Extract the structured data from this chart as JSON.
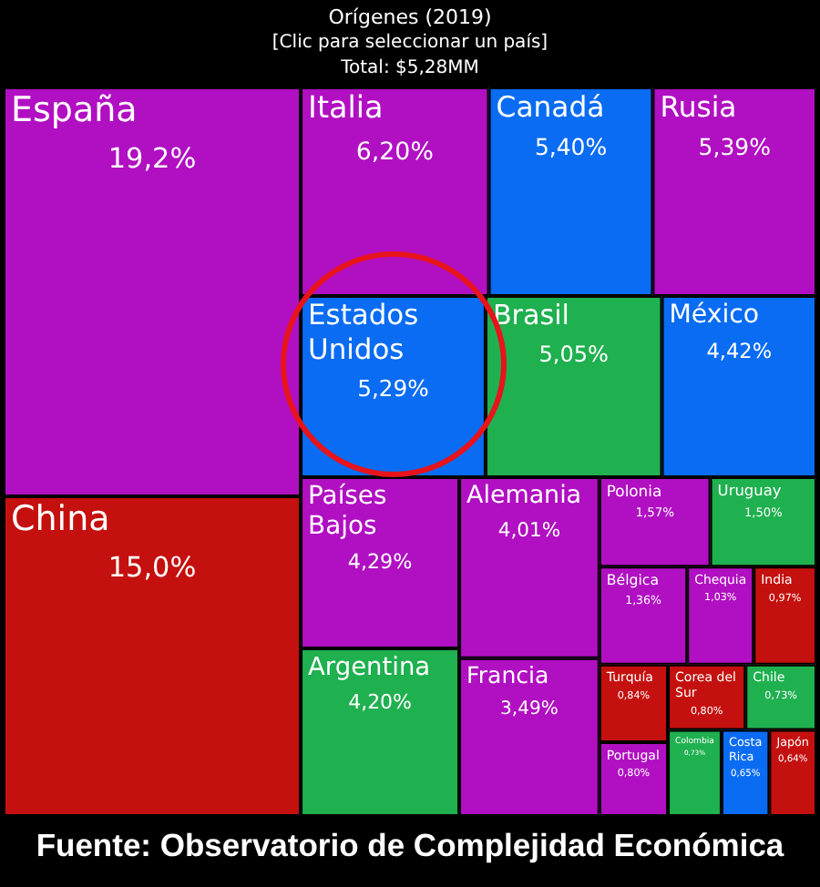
{
  "chart_data": {
    "type": "other",
    "title": "Orígenes (2019)",
    "subtitle": "[Clic para seleccionar un país]",
    "annotations": [
      "Total: $5,28MM",
      "Fuente: Observatorio de Complejidad Económica"
    ],
    "categories": [
      "España",
      "China",
      "Italia",
      "Canadá",
      "Rusia",
      "Estados Unidos",
      "Brasil",
      "México",
      "Países Bajos",
      "Argentina",
      "Alemania",
      "Francia",
      "Polonia",
      "Uruguay",
      "Bélgica",
      "Chequia",
      "India",
      "Turquía",
      "Portugal",
      "Corea del Sur",
      "Chile",
      "Colombia",
      "Costa Rica",
      "Japón"
    ],
    "values": [
      19.2,
      15.0,
      6.2,
      5.4,
      5.39,
      5.29,
      5.05,
      4.42,
      4.29,
      4.2,
      4.01,
      3.49,
      1.57,
      1.5,
      1.36,
      1.03,
      0.97,
      0.84,
      0.8,
      0.8,
      0.73,
      0.73,
      0.65,
      0.64
    ],
    "value_labels": [
      "19,2%",
      "15,0%",
      "6,20%",
      "5,40%",
      "5,39%",
      "5,29%",
      "5,05%",
      "4,42%",
      "4,29%",
      "4,20%",
      "4,01%",
      "3,49%",
      "1,57%",
      "1,50%",
      "1,36%",
      "1,03%",
      "0,97%",
      "0,84%",
      "0,80%",
      "0,80%",
      "0,73%",
      "0,73%",
      "0,65%",
      "0,64%"
    ],
    "colors": [
      "#b10fc2",
      "#c4100e",
      "#b10fc2",
      "#0a6cf2",
      "#b10fc2",
      "#0a6cf2",
      "#1fb04f",
      "#0a6cf2",
      "#b10fc2",
      "#1fb04f",
      "#b10fc2",
      "#b10fc2",
      "#b10fc2",
      "#1fb04f",
      "#b10fc2",
      "#b10fc2",
      "#c4100e",
      "#c4100e",
      "#b10fc2",
      "#c4100e",
      "#1fb04f",
      "#1fb04f",
      "#0a6cf2",
      "#c4100e"
    ]
  }
}
